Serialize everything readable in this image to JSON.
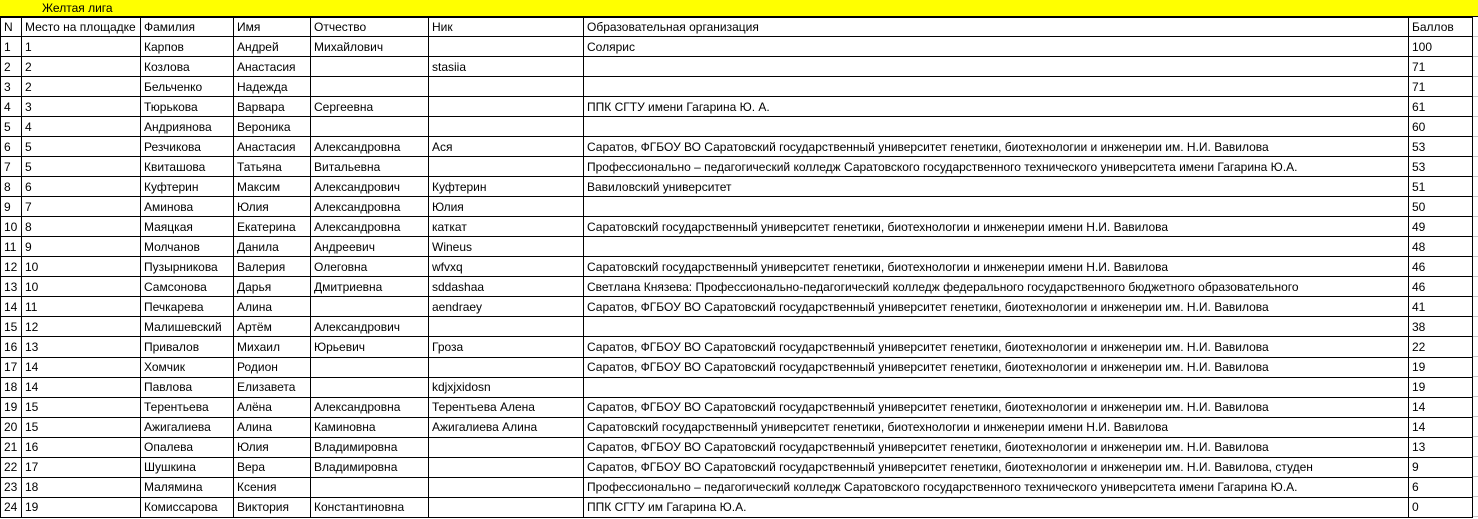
{
  "banner": {
    "title": "Желтая лига",
    "bg_color": "#FFFF00",
    "text_color": "#000000"
  },
  "table": {
    "headers": [
      "N",
      "Место на площадке",
      "Фамилия",
      "Имя",
      "Отчество",
      "Ник",
      "Образовательная организация",
      "Баллов"
    ],
    "rows": [
      [
        "1",
        "1",
        "Карпов",
        "Андрей",
        "Михайлович",
        "",
        "Солярис",
        "100"
      ],
      [
        "2",
        "2",
        "Козлова",
        "Анастасия",
        "",
        "stasiia",
        "",
        "71"
      ],
      [
        "3",
        "2",
        "Бельченко",
        "Надежда",
        "",
        "",
        "",
        "71"
      ],
      [
        "4",
        "3",
        "Тюрькова",
        "Варвара",
        "Сергеевна",
        "",
        "ППК СГТУ имени Гагарина Ю. А.",
        "61"
      ],
      [
        "5",
        "4",
        "Андриянова",
        "Вероника",
        "",
        "",
        "",
        "60"
      ],
      [
        "6",
        "5",
        "Резчикова",
        "Анастасия",
        "Александровна",
        "Ася",
        "Саратов, ФГБОУ ВО Саратовский государственный университет генетики, биотехнологии и инженерии им. Н.И. Вавилова",
        "53"
      ],
      [
        "7",
        "5",
        "Квиташова",
        "Татьяна",
        "Витальевна",
        "",
        "Профессионально – педагогический колледж Саратовского государственного технического университета имени Гагарина Ю.А.",
        "53"
      ],
      [
        "8",
        "6",
        "Куфтерин",
        "Максим",
        "Александрович",
        "Куфтерин",
        "Вавиловский университет",
        "51"
      ],
      [
        "9",
        "7",
        "Аминова",
        "Юлия",
        "Александровна",
        "Юлия",
        "",
        "50"
      ],
      [
        "10",
        "8",
        "Маяцкая",
        "Екатерина",
        "Александровна",
        "каткат",
        "Саратовский государственный университет генетики, биотехнологии и инженерии имени Н.И. Вавилова",
        "49"
      ],
      [
        "11",
        "9",
        "Молчанов",
        "Данила",
        "Андреевич",
        "Wineus",
        "",
        "48"
      ],
      [
        "12",
        "10",
        "Пузырникова",
        "Валерия",
        "Олеговна",
        "wfvxq",
        "Саратовский государственный университет генетики, биотехнологии и инженерии имени Н.И. Вавилова",
        "46"
      ],
      [
        "13",
        "10",
        "Самсонова",
        "Дарья",
        "Дмитриевна",
        "sddashaa",
        "Светлана Князева: Профессионально-педагогический колледж федерального государственного бюджетного образовательного",
        "46"
      ],
      [
        "14",
        "11",
        "Печкарева",
        "Алина",
        "",
        "aendraey",
        "Саратов, ФГБОУ ВО Саратовский государственный университет генетики, биотехнологии и инженерии им. Н.И. Вавилова",
        "41"
      ],
      [
        "15",
        "12",
        "Малишевский",
        "Артём",
        "Александрович",
        "",
        "",
        "38"
      ],
      [
        "16",
        "13",
        "Привалов",
        "Михаил",
        "Юрьевич",
        "Гроза",
        "Саратов, ФГБОУ ВО Саратовский государственный университет генетики, биотехнологии и инженерии им. Н.И. Вавилова",
        "22"
      ],
      [
        "17",
        "14",
        "Хомчик",
        "Родион",
        "",
        "",
        "Саратов, ФГБОУ ВО Саратовский государственный университет генетики, биотехнологии и инженерии им. Н.И. Вавилова",
        "19"
      ],
      [
        "18",
        "14",
        "Павлова",
        "Елизавета",
        "",
        "kdjxjxidosn",
        "",
        "19"
      ],
      [
        "19",
        "15",
        "Терентьева",
        "Алёна",
        "Александровна",
        "Терентьева Алена",
        "Саратов, ФГБОУ ВО Саратовский государственный университет генетики, биотехнологии и инженерии им. Н.И. Вавилова",
        "14"
      ],
      [
        "20",
        "15",
        "Ажигалиева",
        "Алина",
        "Каминовна",
        "Ажигалиева Алина",
        "Саратовский государственный университет генетики, биотехнологии и инженерии имени Н.И. Вавилова",
        "14"
      ],
      [
        "21",
        "16",
        "Опалева",
        "Юлия",
        "Владимировна",
        "",
        "Саратов, ФГБОУ ВО Саратовский государственный университет генетики, биотехнологии и инженерии им. Н.И. Вавилова",
        "13"
      ],
      [
        "22",
        "17",
        "Шушкина",
        "Вера",
        "Владимировна",
        "",
        "Саратов, ФГБОУ ВО Саратовский государственный университет генетики, биотехнологии и инженерии им. Н.И. Вавилова, студен",
        "9"
      ],
      [
        "23",
        "18",
        "Малямина",
        "Ксения",
        "",
        "",
        "Профессионально – педагогический колледж Саратовского государственного технического университета имени Гагарина Ю.А.",
        "6"
      ],
      [
        "24",
        "19",
        "Комиссарова",
        "Виктория",
        "Константиновна",
        "",
        "ППК СГТУ им Гагарина Ю.А.",
        "0"
      ]
    ]
  }
}
